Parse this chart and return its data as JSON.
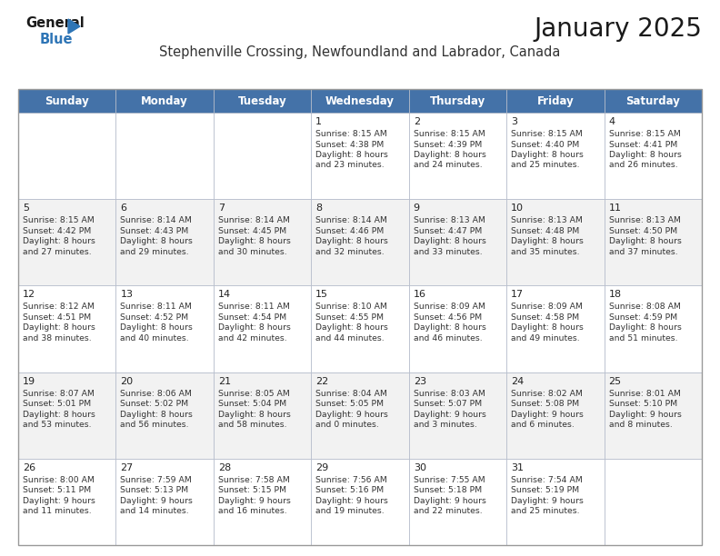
{
  "title": "January 2025",
  "subtitle": "Stephenville Crossing, Newfoundland and Labrador, Canada",
  "header_color": "#4472a8",
  "header_text_color": "#ffffff",
  "cell_bg_white": "#ffffff",
  "cell_bg_gray": "#f2f2f2",
  "border_color": "#b0b8c8",
  "text_color": "#333333",
  "day_number_color": "#222222",
  "day_headers": [
    "Sunday",
    "Monday",
    "Tuesday",
    "Wednesday",
    "Thursday",
    "Friday",
    "Saturday"
  ],
  "weeks": [
    [
      {
        "day": "",
        "sunrise": "",
        "sunset": "",
        "daylight_line1": "",
        "daylight_line2": ""
      },
      {
        "day": "",
        "sunrise": "",
        "sunset": "",
        "daylight_line1": "",
        "daylight_line2": ""
      },
      {
        "day": "",
        "sunrise": "",
        "sunset": "",
        "daylight_line1": "",
        "daylight_line2": ""
      },
      {
        "day": "1",
        "sunrise": "8:15 AM",
        "sunset": "4:38 PM",
        "daylight_line1": "Daylight: 8 hours",
        "daylight_line2": "and 23 minutes."
      },
      {
        "day": "2",
        "sunrise": "8:15 AM",
        "sunset": "4:39 PM",
        "daylight_line1": "Daylight: 8 hours",
        "daylight_line2": "and 24 minutes."
      },
      {
        "day": "3",
        "sunrise": "8:15 AM",
        "sunset": "4:40 PM",
        "daylight_line1": "Daylight: 8 hours",
        "daylight_line2": "and 25 minutes."
      },
      {
        "day": "4",
        "sunrise": "8:15 AM",
        "sunset": "4:41 PM",
        "daylight_line1": "Daylight: 8 hours",
        "daylight_line2": "and 26 minutes."
      }
    ],
    [
      {
        "day": "5",
        "sunrise": "8:15 AM",
        "sunset": "4:42 PM",
        "daylight_line1": "Daylight: 8 hours",
        "daylight_line2": "and 27 minutes."
      },
      {
        "day": "6",
        "sunrise": "8:14 AM",
        "sunset": "4:43 PM",
        "daylight_line1": "Daylight: 8 hours",
        "daylight_line2": "and 29 minutes."
      },
      {
        "day": "7",
        "sunrise": "8:14 AM",
        "sunset": "4:45 PM",
        "daylight_line1": "Daylight: 8 hours",
        "daylight_line2": "and 30 minutes."
      },
      {
        "day": "8",
        "sunrise": "8:14 AM",
        "sunset": "4:46 PM",
        "daylight_line1": "Daylight: 8 hours",
        "daylight_line2": "and 32 minutes."
      },
      {
        "day": "9",
        "sunrise": "8:13 AM",
        "sunset": "4:47 PM",
        "daylight_line1": "Daylight: 8 hours",
        "daylight_line2": "and 33 minutes."
      },
      {
        "day": "10",
        "sunrise": "8:13 AM",
        "sunset": "4:48 PM",
        "daylight_line1": "Daylight: 8 hours",
        "daylight_line2": "and 35 minutes."
      },
      {
        "day": "11",
        "sunrise": "8:13 AM",
        "sunset": "4:50 PM",
        "daylight_line1": "Daylight: 8 hours",
        "daylight_line2": "and 37 minutes."
      }
    ],
    [
      {
        "day": "12",
        "sunrise": "8:12 AM",
        "sunset": "4:51 PM",
        "daylight_line1": "Daylight: 8 hours",
        "daylight_line2": "and 38 minutes."
      },
      {
        "day": "13",
        "sunrise": "8:11 AM",
        "sunset": "4:52 PM",
        "daylight_line1": "Daylight: 8 hours",
        "daylight_line2": "and 40 minutes."
      },
      {
        "day": "14",
        "sunrise": "8:11 AM",
        "sunset": "4:54 PM",
        "daylight_line1": "Daylight: 8 hours",
        "daylight_line2": "and 42 minutes."
      },
      {
        "day": "15",
        "sunrise": "8:10 AM",
        "sunset": "4:55 PM",
        "daylight_line1": "Daylight: 8 hours",
        "daylight_line2": "and 44 minutes."
      },
      {
        "day": "16",
        "sunrise": "8:09 AM",
        "sunset": "4:56 PM",
        "daylight_line1": "Daylight: 8 hours",
        "daylight_line2": "and 46 minutes."
      },
      {
        "day": "17",
        "sunrise": "8:09 AM",
        "sunset": "4:58 PM",
        "daylight_line1": "Daylight: 8 hours",
        "daylight_line2": "and 49 minutes."
      },
      {
        "day": "18",
        "sunrise": "8:08 AM",
        "sunset": "4:59 PM",
        "daylight_line1": "Daylight: 8 hours",
        "daylight_line2": "and 51 minutes."
      }
    ],
    [
      {
        "day": "19",
        "sunrise": "8:07 AM",
        "sunset": "5:01 PM",
        "daylight_line1": "Daylight: 8 hours",
        "daylight_line2": "and 53 minutes."
      },
      {
        "day": "20",
        "sunrise": "8:06 AM",
        "sunset": "5:02 PM",
        "daylight_line1": "Daylight: 8 hours",
        "daylight_line2": "and 56 minutes."
      },
      {
        "day": "21",
        "sunrise": "8:05 AM",
        "sunset": "5:04 PM",
        "daylight_line1": "Daylight: 8 hours",
        "daylight_line2": "and 58 minutes."
      },
      {
        "day": "22",
        "sunrise": "8:04 AM",
        "sunset": "5:05 PM",
        "daylight_line1": "Daylight: 9 hours",
        "daylight_line2": "and 0 minutes."
      },
      {
        "day": "23",
        "sunrise": "8:03 AM",
        "sunset": "5:07 PM",
        "daylight_line1": "Daylight: 9 hours",
        "daylight_line2": "and 3 minutes."
      },
      {
        "day": "24",
        "sunrise": "8:02 AM",
        "sunset": "5:08 PM",
        "daylight_line1": "Daylight: 9 hours",
        "daylight_line2": "and 6 minutes."
      },
      {
        "day": "25",
        "sunrise": "8:01 AM",
        "sunset": "5:10 PM",
        "daylight_line1": "Daylight: 9 hours",
        "daylight_line2": "and 8 minutes."
      }
    ],
    [
      {
        "day": "26",
        "sunrise": "8:00 AM",
        "sunset": "5:11 PM",
        "daylight_line1": "Daylight: 9 hours",
        "daylight_line2": "and 11 minutes."
      },
      {
        "day": "27",
        "sunrise": "7:59 AM",
        "sunset": "5:13 PM",
        "daylight_line1": "Daylight: 9 hours",
        "daylight_line2": "and 14 minutes."
      },
      {
        "day": "28",
        "sunrise": "7:58 AM",
        "sunset": "5:15 PM",
        "daylight_line1": "Daylight: 9 hours",
        "daylight_line2": "and 16 minutes."
      },
      {
        "day": "29",
        "sunrise": "7:56 AM",
        "sunset": "5:16 PM",
        "daylight_line1": "Daylight: 9 hours",
        "daylight_line2": "and 19 minutes."
      },
      {
        "day": "30",
        "sunrise": "7:55 AM",
        "sunset": "5:18 PM",
        "daylight_line1": "Daylight: 9 hours",
        "daylight_line2": "and 22 minutes."
      },
      {
        "day": "31",
        "sunrise": "7:54 AM",
        "sunset": "5:19 PM",
        "daylight_line1": "Daylight: 9 hours",
        "daylight_line2": "and 25 minutes."
      },
      {
        "day": "",
        "sunrise": "",
        "sunset": "",
        "daylight_line1": "",
        "daylight_line2": ""
      }
    ]
  ],
  "logo_color": "#2e75b6",
  "fig_width": 7.92,
  "fig_height": 6.12,
  "dpi": 100
}
